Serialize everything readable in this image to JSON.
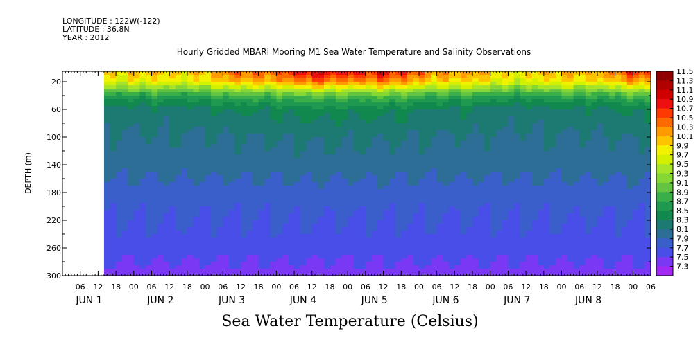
{
  "header": {
    "longitude": "LONGITUDE : 122W(-122)",
    "latitude": "LATITUDE : 36.8N",
    "year": "YEAR : 2012"
  },
  "title": "Hourly Gridded MBARI Mooring M1 Sea Water Temperature and Salinity Observations",
  "footer": "Sea Water Temperature (Celsius)",
  "chart_data": {
    "type": "heatmap",
    "ylabel": "DEPTH (m)",
    "y_ticks": [
      "20",
      "60",
      "100",
      "140",
      "180",
      "220",
      "260",
      "300"
    ],
    "y_tick_values": [
      20,
      60,
      100,
      140,
      180,
      220,
      260,
      300
    ],
    "ylim": [
      300,
      5
    ],
    "y_inverted": true,
    "x_ticks": [
      "06",
      "12",
      "18",
      "00",
      "06",
      "12",
      "18",
      "00",
      "06",
      "12",
      "18",
      "00",
      "06",
      "12",
      "18",
      "00",
      "06",
      "12",
      "18",
      "00",
      "06",
      "12",
      "18",
      "00",
      "06",
      "12",
      "18",
      "00",
      "06",
      "12",
      "18",
      "00",
      "06"
    ],
    "x_tick_hours": [
      6,
      12,
      18,
      24,
      30,
      36,
      42,
      48,
      54,
      60,
      66,
      72,
      78,
      84,
      90,
      96,
      102,
      108,
      114,
      120,
      126,
      132,
      138,
      144,
      150,
      156,
      162,
      168,
      174,
      180,
      186,
      192,
      198
    ],
    "xlim_hours": [
      0,
      198
    ],
    "x_date_labels": [
      {
        "label": "JUN  1",
        "hour": 0
      },
      {
        "label": "JUN  2",
        "hour": 24
      },
      {
        "label": "JUN  3",
        "hour": 48
      },
      {
        "label": "JUN  4",
        "hour": 72
      },
      {
        "label": "JUN  5",
        "hour": 96
      },
      {
        "label": "JUN  6",
        "hour": 120
      },
      {
        "label": "JUN  7",
        "hour": 144
      },
      {
        "label": "JUN  8",
        "hour": 168
      }
    ],
    "data_start_hour": 14,
    "colorbar": {
      "levels": [
        "11.5",
        "11.3",
        "11.1",
        "10.9",
        "10.7",
        "10.5",
        "10.3",
        "10.1",
        "9.9",
        "9.7",
        "9.5",
        "9.3",
        "9.1",
        "8.9",
        "8.7",
        "8.5",
        "8.3",
        "8.1",
        "7.9",
        "7.7",
        "7.5",
        "7.3"
      ],
      "colors": [
        "#900000",
        "#b00000",
        "#d00000",
        "#ee1010",
        "#ff3a00",
        "#ff6a00",
        "#ff9a00",
        "#ffc400",
        "#f2f200",
        "#d2f000",
        "#a8e428",
        "#86d634",
        "#62c440",
        "#3aae48",
        "#1f9850",
        "#11884e",
        "#1d7a72",
        "#2c6e96",
        "#3a5eca",
        "#4a4ee8",
        "#7a38f4",
        "#a428f4"
      ]
    },
    "temperature_profile": [
      {
        "depth": 5,
        "temp": 10.6
      },
      {
        "depth": 20,
        "temp": 10.2
      },
      {
        "depth": 40,
        "temp": 9.0
      },
      {
        "depth": 60,
        "temp": 8.5
      },
      {
        "depth": 100,
        "temp": 8.3
      },
      {
        "depth": 140,
        "temp": 8.2
      },
      {
        "depth": 180,
        "temp": 8.0
      },
      {
        "depth": 220,
        "temp": 7.9
      },
      {
        "depth": 260,
        "temp": 7.8
      },
      {
        "depth": 300,
        "temp": 7.6
      }
    ]
  }
}
